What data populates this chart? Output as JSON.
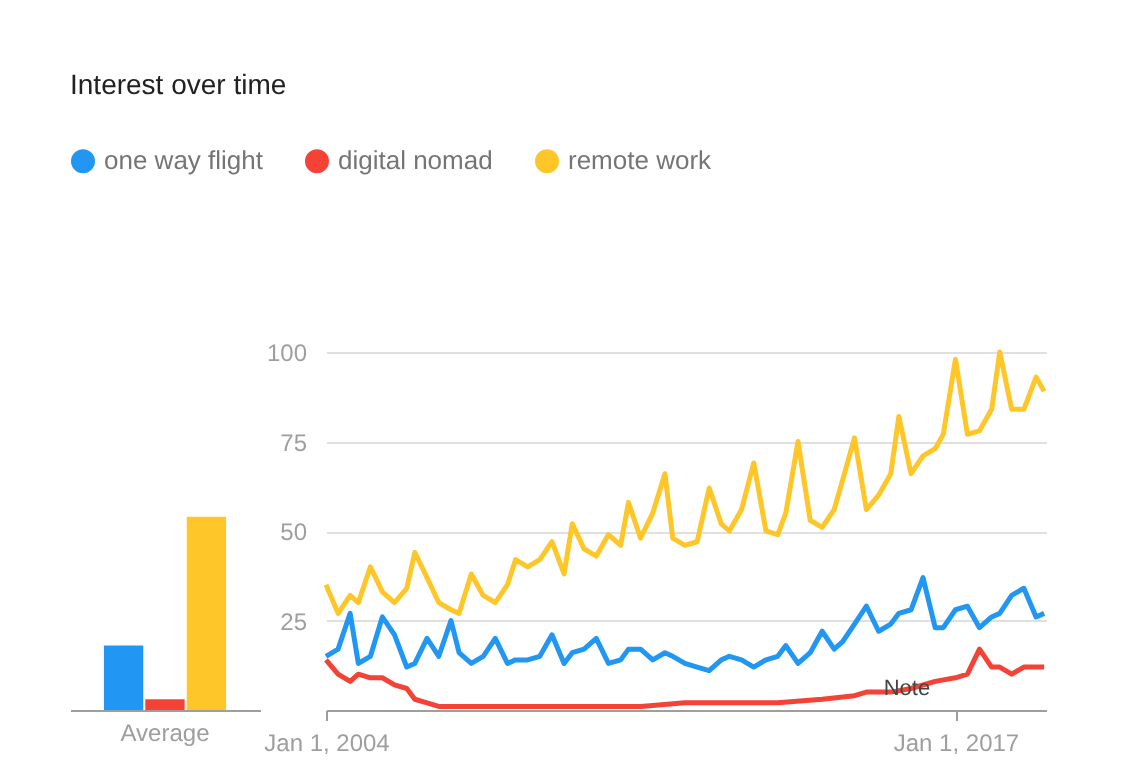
{
  "chart_data": [
    {
      "type": "bar",
      "title": "Interest over time",
      "categories": [
        "Average"
      ],
      "ylim": [
        0,
        100
      ],
      "tick_labels": "x",
      "grid": false,
      "series": [
        {
          "color": "#2196f3",
          "values": [
            18
          ]
        },
        {
          "color": "#f44336",
          "values": [
            3
          ]
        },
        {
          "color": "#ffc629",
          "values": [
            54
          ]
        }
      ]
    },
    {
      "type": "line",
      "legend": "top left",
      "grid": "y",
      "marker": "none",
      "line_style": "solid",
      "xlim": [
        "2004-01-01",
        "2018-11-15"
      ],
      "ylim": [
        0,
        100
      ],
      "yticks": [
        25,
        50,
        75,
        100
      ],
      "xticks": [
        {
          "value": "2004-01-01",
          "label": "Jan 1, 2004"
        },
        {
          "value": "2017-01-01",
          "label": "Jan 1, 2017"
        }
      ],
      "tick_labels": "xy",
      "annotations": [
        {
          "text": "Note",
          "x": "2016-01",
          "y": 6
        }
      ],
      "series": [
        {
          "name": "one way flight",
          "color": "#2196f3",
          "x": [
            "2004-01",
            "2004-04",
            "2004-07",
            "2004-09",
            "2004-12",
            "2005-03",
            "2005-06",
            "2005-09",
            "2005-11",
            "2006-02",
            "2006-05",
            "2006-08",
            "2006-10",
            "2007-01",
            "2007-04",
            "2007-07",
            "2007-10",
            "2007-12",
            "2008-03",
            "2008-06",
            "2008-09",
            "2008-12",
            "2009-02",
            "2009-05",
            "2009-08",
            "2009-11",
            "2010-02",
            "2010-04",
            "2010-07",
            "2010-10",
            "2011-01",
            "2011-03",
            "2011-06",
            "2011-09",
            "2011-12",
            "2012-03",
            "2012-05",
            "2012-08",
            "2012-11",
            "2013-02",
            "2013-05",
            "2013-07",
            "2013-10",
            "2014-01",
            "2014-04",
            "2014-07",
            "2014-09",
            "2014-12",
            "2015-03",
            "2015-06",
            "2015-09",
            "2015-11",
            "2016-02",
            "2016-05",
            "2016-08",
            "2016-10",
            "2017-01",
            "2017-04",
            "2017-07",
            "2017-10",
            "2017-12",
            "2018-03",
            "2018-06",
            "2018-09",
            "2018-11"
          ],
          "values": [
            15,
            17,
            27,
            13,
            15,
            26,
            21,
            12,
            13,
            20,
            15,
            25,
            16,
            13,
            15,
            20,
            13,
            14,
            14,
            15,
            21,
            13,
            16,
            17,
            20,
            13,
            14,
            17,
            17,
            14,
            16,
            15,
            13,
            12,
            11,
            14,
            15,
            14,
            12,
            14,
            15,
            18,
            13,
            16,
            22,
            17,
            19,
            24,
            29,
            22,
            24,
            27,
            28,
            37,
            23,
            23,
            28,
            29,
            23,
            26,
            27,
            32,
            34,
            26,
            27
          ]
        },
        {
          "name": "digital nomad",
          "color": "#f44336",
          "x": [
            "2004-01",
            "2004-04",
            "2004-07",
            "2004-09",
            "2004-12",
            "2005-03",
            "2005-06",
            "2005-09",
            "2005-11",
            "2006-02",
            "2006-05",
            "2006-08",
            "2006-10",
            "2007-10",
            "2008-09",
            "2009-08",
            "2010-07",
            "2011-06",
            "2012-05",
            "2013-05",
            "2014-04",
            "2014-12",
            "2015-03",
            "2015-09",
            "2016-02",
            "2016-08",
            "2017-01",
            "2017-04",
            "2017-07",
            "2017-10",
            "2017-12",
            "2018-03",
            "2018-06",
            "2018-09",
            "2018-11"
          ],
          "values": [
            14,
            10,
            8,
            10,
            9,
            9,
            7,
            6,
            3,
            2,
            1,
            1,
            1,
            1,
            1,
            1,
            1,
            2,
            2,
            2,
            3,
            4,
            5,
            5,
            6,
            8,
            9,
            10,
            17,
            12,
            12,
            10,
            12,
            12,
            12
          ]
        },
        {
          "name": "remote work",
          "color": "#ffc629",
          "x": [
            "2004-01",
            "2004-04",
            "2004-07",
            "2004-09",
            "2004-12",
            "2005-03",
            "2005-06",
            "2005-09",
            "2005-11",
            "2006-02",
            "2006-05",
            "2006-08",
            "2006-10",
            "2007-01",
            "2007-04",
            "2007-07",
            "2007-10",
            "2007-12",
            "2008-03",
            "2008-06",
            "2008-09",
            "2008-12",
            "2009-02",
            "2009-05",
            "2009-08",
            "2009-11",
            "2010-02",
            "2010-04",
            "2010-07",
            "2010-10",
            "2011-01",
            "2011-03",
            "2011-06",
            "2011-09",
            "2011-12",
            "2012-03",
            "2012-05",
            "2012-08",
            "2012-11",
            "2013-02",
            "2013-05",
            "2013-07",
            "2013-10",
            "2014-01",
            "2014-04",
            "2014-07",
            "2014-09",
            "2014-12",
            "2015-03",
            "2015-06",
            "2015-09",
            "2015-11",
            "2016-02",
            "2016-05",
            "2016-08",
            "2016-10",
            "2017-01",
            "2017-04",
            "2017-07",
            "2017-10",
            "2017-12",
            "2018-03",
            "2018-06",
            "2018-09",
            "2018-11"
          ],
          "values": [
            35,
            27,
            32,
            30,
            40,
            33,
            30,
            34,
            44,
            37,
            30,
            28,
            27,
            38,
            32,
            30,
            35,
            42,
            40,
            42,
            47,
            38,
            52,
            45,
            43,
            49,
            46,
            58,
            48,
            55,
            66,
            48,
            46,
            47,
            62,
            52,
            50,
            56,
            69,
            50,
            49,
            55,
            75,
            53,
            51,
            56,
            64,
            76,
            56,
            60,
            66,
            82,
            66,
            71,
            73,
            77,
            98,
            77,
            78,
            84,
            100,
            84,
            84,
            93,
            89
          ]
        }
      ]
    }
  ]
}
